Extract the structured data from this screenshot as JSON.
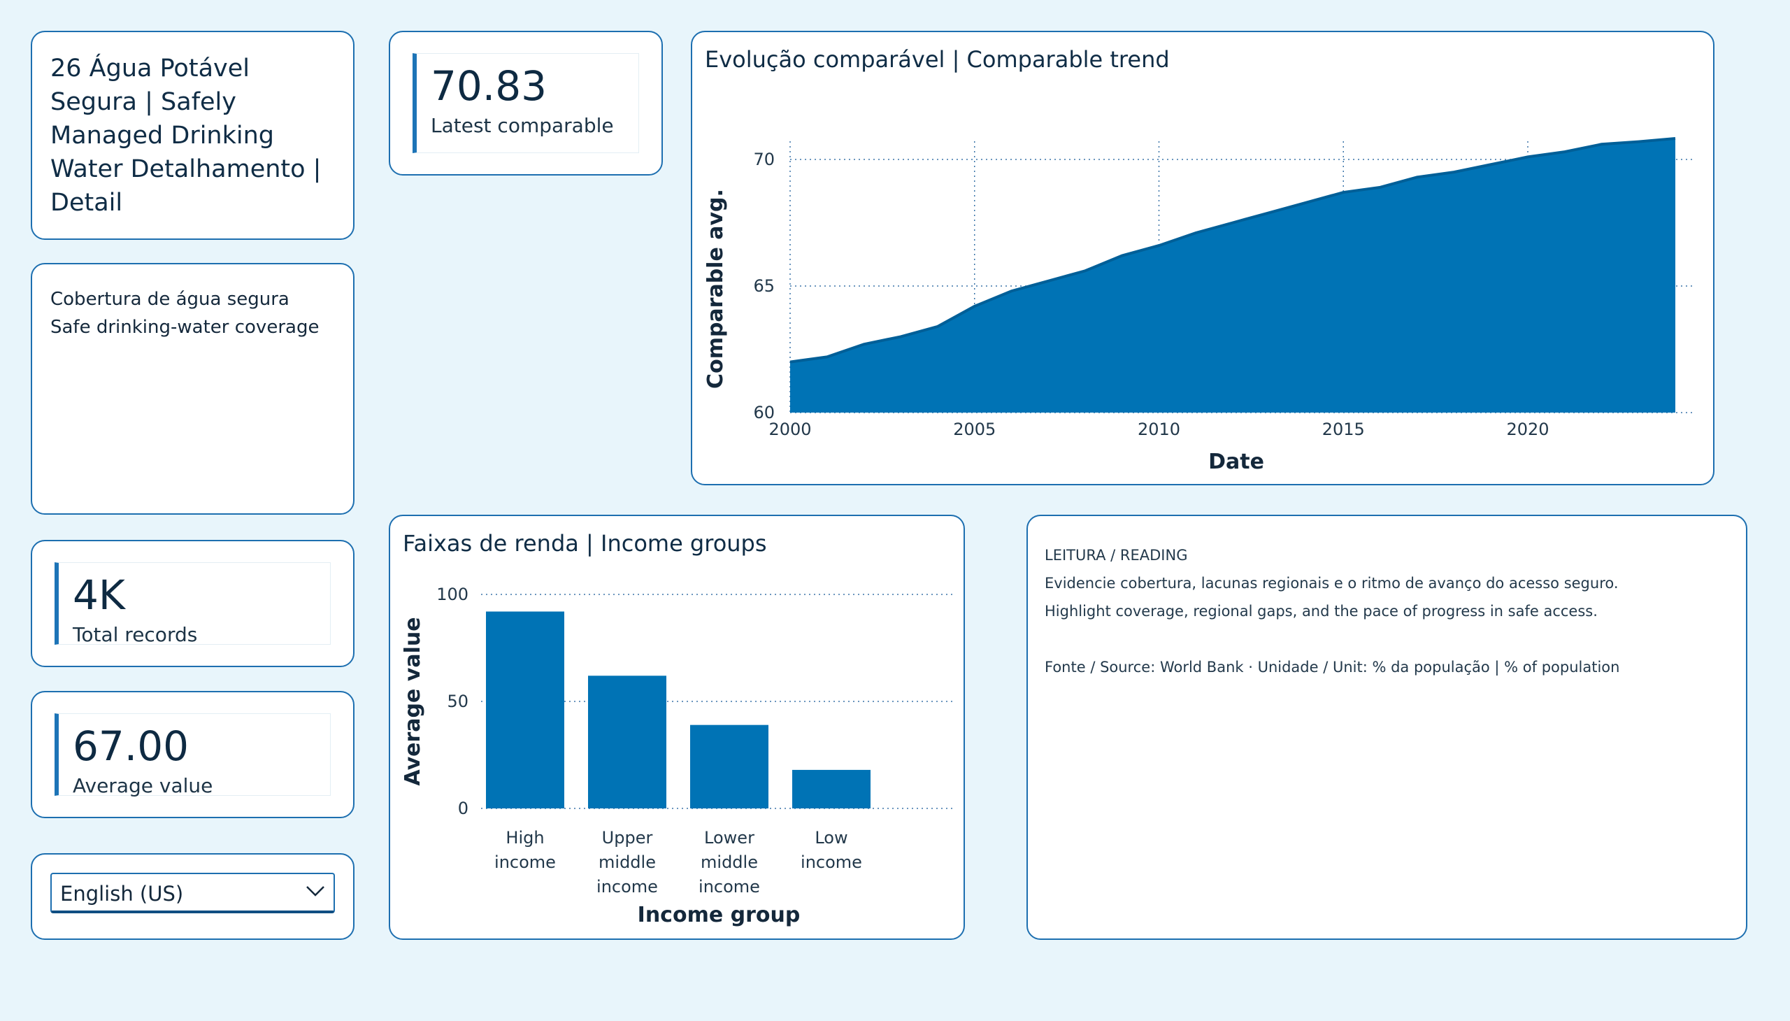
{
  "header": {
    "title": "26  Água Potável Segura | Safely Managed Drinking Water Detalhamento | Detail"
  },
  "coverage": {
    "line1": "Cobertura de água segura",
    "line2": "Safe drinking-water coverage"
  },
  "kpis": {
    "latest": {
      "value": "70.83",
      "label": "Latest comparable"
    },
    "records": {
      "value": "4K",
      "label": "Total records"
    },
    "average": {
      "value": "67.00",
      "label": "Average value"
    },
    "accent_color": "#1d74b7"
  },
  "language_select": {
    "selected": "English (US)"
  },
  "reading": {
    "heading": "LEITURA / READING",
    "line_pt": "Evidencie cobertura, lacunas regionais e o ritmo de avanço do acesso seguro.",
    "line_en": "Highlight coverage, regional gaps, and the pace of progress in safe access.",
    "source": "Fonte / Source: World Bank · Unidade / Unit: % da população | % of population"
  },
  "colors": {
    "accent": "#0073b5",
    "border": "#1d6fb0",
    "background": "#e8f5fb"
  },
  "chart_data": [
    {
      "type": "area",
      "title": "Evolução comparável | Comparable trend",
      "xlabel": "Date",
      "ylabel": "Comparable avg.",
      "x": [
        2000,
        2001,
        2002,
        2003,
        2004,
        2005,
        2006,
        2007,
        2008,
        2009,
        2010,
        2011,
        2012,
        2013,
        2014,
        2015,
        2016,
        2017,
        2018,
        2019,
        2020,
        2021,
        2022,
        2023,
        2024
      ],
      "values": [
        62.0,
        62.2,
        62.7,
        63.0,
        63.4,
        64.2,
        64.8,
        65.2,
        65.6,
        66.2,
        66.6,
        67.1,
        67.5,
        67.9,
        68.3,
        68.7,
        68.9,
        69.3,
        69.5,
        69.8,
        70.1,
        70.3,
        70.6,
        70.7,
        70.83
      ],
      "xlim": [
        2000,
        2024
      ],
      "ylim": [
        60,
        72
      ],
      "xticks": [
        2000,
        2005,
        2010,
        2015,
        2020
      ],
      "yticks": [
        60,
        65,
        70
      ],
      "grid": true,
      "color": "#0073b5"
    },
    {
      "type": "bar",
      "title": "Faixas de renda | Income groups",
      "xlabel": "Income group",
      "ylabel": "Average value",
      "categories": [
        [
          "High",
          "income"
        ],
        [
          "Upper",
          "middle",
          "income"
        ],
        [
          "Lower",
          "middle",
          "income"
        ],
        [
          "Low",
          "income"
        ]
      ],
      "values": [
        92,
        62,
        39,
        18
      ],
      "ylim": [
        0,
        105
      ],
      "yticks": [
        0,
        50,
        100
      ],
      "grid": true,
      "color": "#0073b5"
    }
  ]
}
